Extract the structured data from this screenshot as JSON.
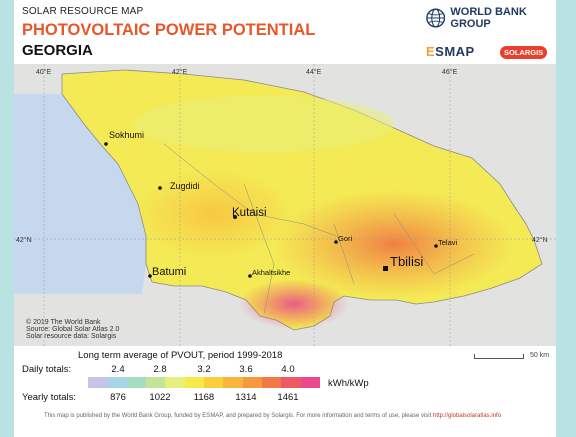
{
  "header": {
    "supertitle": "SOLAR RESOURCE MAP",
    "title": "PHOTOVOLTAIC POWER POTENTIAL",
    "country": "GEORGIA"
  },
  "logos": {
    "world_bank": "WORLD BANK GROUP",
    "esmap_e": "E",
    "esmap_rest": "SMAP",
    "solargis": "SOLARGIS"
  },
  "map": {
    "longitudes": [
      "40°E",
      "42°E",
      "44°E",
      "46°E"
    ],
    "latitude": "42°N",
    "cities": {
      "sokhumi": "Sokhumi",
      "zugdidi": "Zugdidi",
      "kutaisi": "Kutaisi",
      "gori": "Gori",
      "telavi": "Telavi",
      "tbilisi": "Tbilisi",
      "batumi": "Batumi",
      "akhaltsikhe": "Akhaltsikhe"
    },
    "credits": [
      "© 2019 The World Bank",
      "Source: Global Solar Atlas 2.0",
      "Solar resource data: Solargis"
    ]
  },
  "legend": {
    "caption": "Long term average of PVOUT, period 1999-2018",
    "scale": "50 km",
    "daily_label": "Daily totals:",
    "daily_ticks": [
      "2.4",
      "2.8",
      "3.2",
      "3.6",
      "4.0"
    ],
    "yearly_label": "Yearly totals:",
    "yearly_ticks": [
      "876",
      "1022",
      "1168",
      "1314",
      "1461"
    ],
    "unit": "kWh/kWp",
    "colors": [
      "#c5c3e6",
      "#a9d3e8",
      "#a6dcc0",
      "#c6e39a",
      "#e9ef7c",
      "#f6e94a",
      "#f9cf3c",
      "#f8b53c",
      "#f6983e",
      "#f27947",
      "#ee5a63",
      "#e94a8c"
    ]
  },
  "footer": {
    "text": "This map is published by the World Bank Group, funded by ESMAP, and prepared by Solargis. For more information and terms of use, please visit",
    "link": "http://globalsolaratlas.info"
  }
}
